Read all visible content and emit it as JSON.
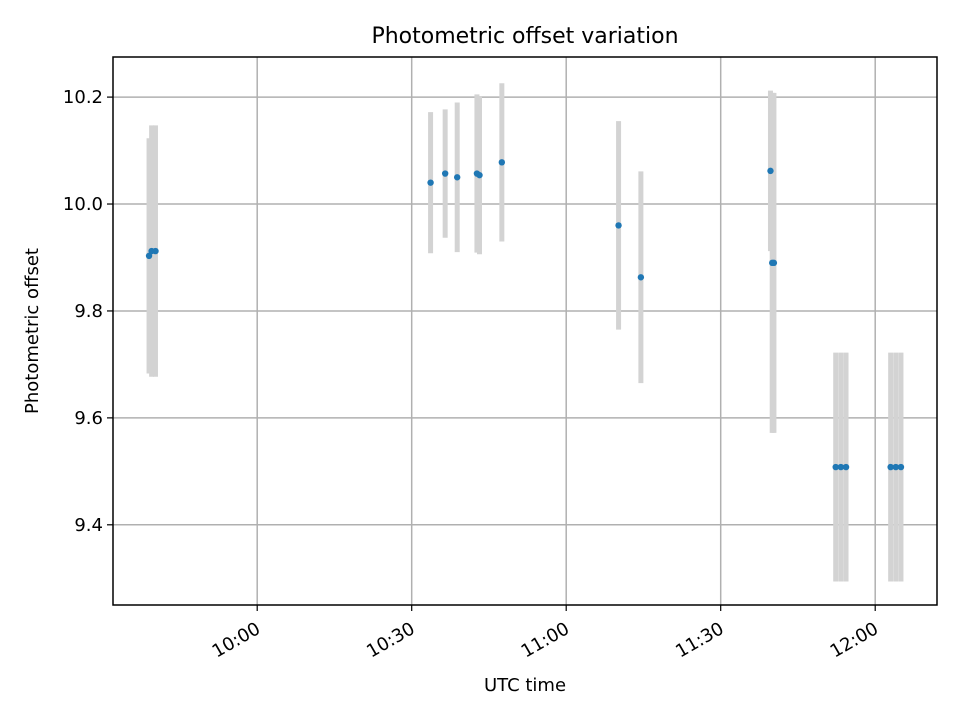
{
  "chart_data": {
    "type": "scatter",
    "title": "Photometric offset variation",
    "xlabel": "UTC time",
    "ylabel": "Photometric offset",
    "x_axis": {
      "kind": "time",
      "range": [
        "09:32",
        "12:12"
      ],
      "ticks": [
        "10:00",
        "10:30",
        "11:00",
        "11:30",
        "12:00"
      ]
    },
    "y_axis": {
      "range": [
        9.25,
        10.275
      ],
      "ticks": [
        9.4,
        9.6,
        9.8,
        10.0,
        10.2
      ],
      "tick_labels": [
        "9.4",
        "9.6",
        "9.8",
        "10.0",
        "10.2"
      ]
    },
    "grid": true,
    "colors": {
      "marker": "#1f77b4",
      "errorbar": "#d3d3d3"
    },
    "points": [
      {
        "time": "09:39:00",
        "y": 9.903,
        "err": 0.22
      },
      {
        "time": "09:39:30",
        "y": 9.912,
        "err": 0.235
      },
      {
        "time": "09:40:15",
        "y": 9.912,
        "err": 0.235
      },
      {
        "time": "10:33:40",
        "y": 10.04,
        "err": 0.132
      },
      {
        "time": "10:36:30",
        "y": 10.057,
        "err": 0.12
      },
      {
        "time": "10:38:50",
        "y": 10.05,
        "err": 0.14
      },
      {
        "time": "10:42:40",
        "y": 10.057,
        "err": 0.148
      },
      {
        "time": "10:43:10",
        "y": 10.054,
        "err": 0.148
      },
      {
        "time": "10:47:30",
        "y": 10.078,
        "err": 0.148
      },
      {
        "time": "11:10:10",
        "y": 9.96,
        "err": 0.195
      },
      {
        "time": "11:14:30",
        "y": 9.863,
        "err": 0.198
      },
      {
        "time": "11:39:40",
        "y": 10.062,
        "err": 0.15
      },
      {
        "time": "11:40:00",
        "y": 9.89,
        "err": 0.318
      },
      {
        "time": "11:40:20",
        "y": 9.89,
        "err": 0.318
      },
      {
        "time": "11:52:20",
        "y": 9.508,
        "err": 0.214
      },
      {
        "time": "11:53:20",
        "y": 9.508,
        "err": 0.214
      },
      {
        "time": "11:54:20",
        "y": 9.508,
        "err": 0.214
      },
      {
        "time": "12:03:00",
        "y": 9.508,
        "err": 0.214
      },
      {
        "time": "12:04:00",
        "y": 9.508,
        "err": 0.214
      },
      {
        "time": "12:05:00",
        "y": 9.508,
        "err": 0.214
      }
    ]
  }
}
